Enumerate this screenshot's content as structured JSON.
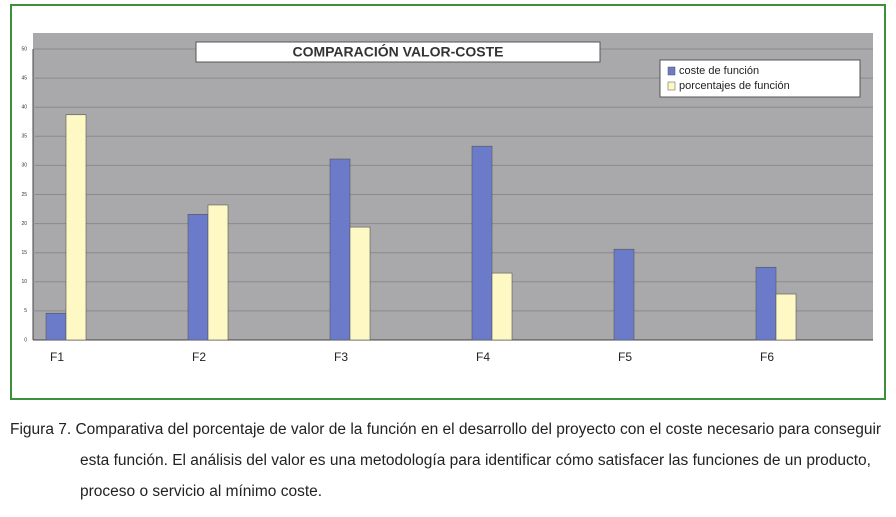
{
  "chart_data": {
    "type": "bar",
    "title": "COMPARACIÓN VALOR-COSTE",
    "categories": [
      "F1",
      "F2",
      "F3",
      "F4",
      "F5",
      "F6"
    ],
    "series": [
      {
        "name": "coste de función",
        "color": "#6b7bc9",
        "values": [
          4.6,
          21.6,
          31.1,
          33.3,
          15.6,
          12.5
        ]
      },
      {
        "name": "porcentajes de función",
        "color": "#fdf8c4",
        "values": [
          38.7,
          23.2,
          19.4,
          11.5,
          0,
          7.9
        ]
      }
    ],
    "ylim": [
      0,
      50
    ],
    "yticks": [
      0,
      5,
      10,
      15,
      20,
      25,
      30,
      35,
      40,
      45,
      50
    ],
    "grid": true,
    "legend": "top-right"
  },
  "caption": "Figura 7. Comparativa del porcentaje de valor de la función en el desarrollo del proyecto con el coste necesario para conseguir esta función. El análisis del valor es una metodología para identificar cómo satisfacer las funciones de un producto, proceso o servicio al mínimo coste."
}
